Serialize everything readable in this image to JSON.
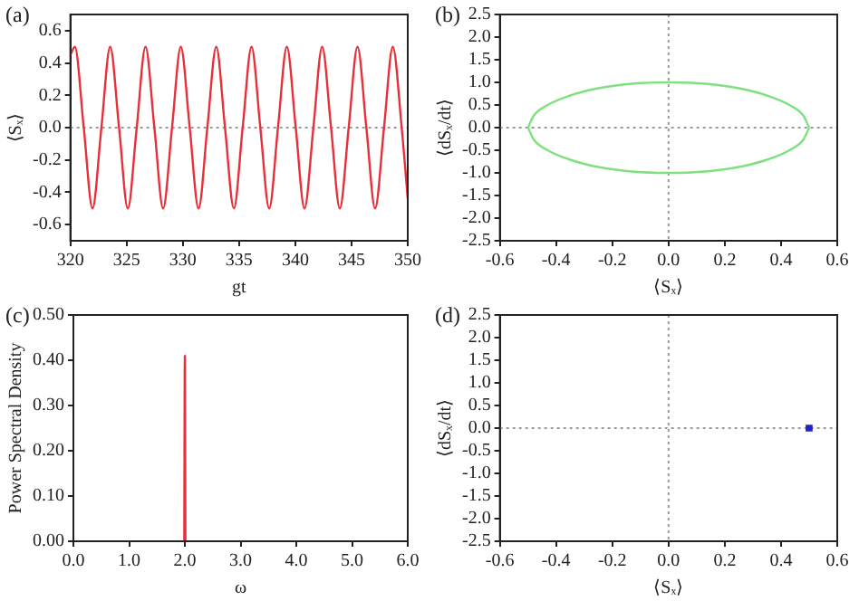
{
  "chart_data": [
    {
      "type": "line",
      "title": "(a)",
      "xlabel": "gt",
      "ylabel": "⟨Sₓ⟩",
      "xlim": [
        320,
        350
      ],
      "ylim": [
        -0.7,
        0.7
      ],
      "xticks": [
        320,
        325,
        330,
        335,
        340,
        345,
        350
      ],
      "yticks": [
        {
          "value": -0.6,
          "label": "-0.6"
        },
        {
          "value": -0.4,
          "label": "-0.4"
        },
        {
          "value": -0.2,
          "label": "-0.2"
        },
        {
          "value": 0,
          "label": "0.0"
        },
        0.2,
        0.4,
        0.6
      ],
      "marker": "none",
      "ref_lines": [
        {
          "axis": "y",
          "value": 0,
          "color": "#999999",
          "line_style": "dotted"
        }
      ],
      "series": [
        {
          "color": "#e8303a",
          "x": [
            320,
            320.4,
            321.19,
            321.97,
            322.76,
            323.54,
            324.33,
            325.11,
            325.9,
            326.68,
            327.47,
            328.25,
            329.04,
            329.82,
            330.61,
            331.4,
            332.18,
            332.97,
            333.75,
            334.54,
            335.32,
            336.11,
            336.89,
            337.68,
            338.46,
            339.25,
            340.04,
            340.82,
            341.61,
            342.39,
            343.18,
            343.96,
            344.75,
            345.53,
            346.32,
            347.1,
            347.89,
            348.67,
            349.46,
            350
          ],
          "values": [
            0.45,
            0.5,
            0,
            -0.5,
            0,
            0.5,
            0,
            -0.5,
            0,
            0.5,
            0,
            -0.5,
            0,
            0.5,
            0,
            -0.5,
            0,
            0.5,
            0,
            -0.5,
            0,
            0.5,
            0,
            -0.5,
            0,
            0.5,
            0,
            -0.5,
            0,
            0.5,
            0,
            -0.5,
            0,
            0.5,
            0,
            -0.5,
            0,
            0.5,
            0,
            -0.44
          ]
        }
      ]
    },
    {
      "type": "line",
      "title": "(b)",
      "xlabel": "⟨Sₓ⟩",
      "ylabel": "⟨dSₓ/dt⟩",
      "xlim": [
        -0.6,
        0.6
      ],
      "ylim": [
        -2.5,
        2.5
      ],
      "xticks": [
        -0.6,
        -0.4,
        -0.2,
        {
          "value": 0,
          "label": "0.0"
        },
        0.2,
        0.4,
        0.6
      ],
      "yticks": [
        -2.5,
        {
          "value": -2,
          "label": "-2.0"
        },
        -1.5,
        {
          "value": -1,
          "label": "-1.0"
        },
        -0.5,
        {
          "value": 0,
          "label": "0.0"
        },
        0.5,
        {
          "value": 1,
          "label": "1.0"
        },
        1.5,
        {
          "value": 2,
          "label": "2.0"
        },
        2.5
      ],
      "marker": "none",
      "ref_lines": [
        {
          "axis": "x",
          "value": 0,
          "color": "#999999",
          "line_style": "dotted"
        },
        {
          "axis": "y",
          "value": 0,
          "color": "#999999",
          "line_style": "dotted"
        }
      ],
      "series": [
        {
          "color": "#7fe07f",
          "x": [
            -0.5,
            -0.48,
            -0.43,
            -0.35,
            -0.25,
            -0.13,
            0,
            0.13,
            0.25,
            0.35,
            0.43,
            0.48,
            0.5
          ],
          "values": [
            0,
            0.26,
            0.5,
            0.71,
            0.87,
            0.97,
            1,
            0.97,
            0.87,
            0.71,
            0.5,
            0.26,
            0
          ]
        },
        {
          "color": "#7fe07f",
          "x": [
            -0.5,
            -0.48,
            -0.43,
            -0.35,
            -0.25,
            -0.13,
            0,
            0.13,
            0.25,
            0.35,
            0.43,
            0.48,
            0.5
          ],
          "values": [
            0,
            -0.26,
            -0.5,
            -0.71,
            -0.87,
            -0.97,
            -1,
            -0.97,
            -0.87,
            -0.71,
            -0.5,
            -0.26,
            0
          ]
        }
      ]
    },
    {
      "type": "line",
      "title": "(c)",
      "xlabel": "ω",
      "ylabel": "Power Spectral Density",
      "xlim": [
        0,
        6
      ],
      "ylim": [
        0,
        0.5
      ],
      "xticks": [
        {
          "value": 0,
          "label": "0.0"
        },
        {
          "value": 1,
          "label": "1.0"
        },
        {
          "value": 2,
          "label": "2.0"
        },
        {
          "value": 3,
          "label": "3.0"
        },
        {
          "value": 4,
          "label": "4.0"
        },
        {
          "value": 5,
          "label": "5.0"
        },
        {
          "value": 6,
          "label": "6.0"
        }
      ],
      "yticks": [
        {
          "value": 0,
          "label": "0.00"
        },
        {
          "value": 0.1,
          "label": "0.10"
        },
        {
          "value": 0.2,
          "label": "0.20"
        },
        {
          "value": 0.3,
          "label": "0.30"
        },
        {
          "value": 0.4,
          "label": "0.40"
        },
        {
          "value": 0.5,
          "label": "0.50"
        }
      ],
      "marker": "none",
      "series": [
        {
          "color": "#e8303a",
          "x": [
            1.99,
            2,
            2.01
          ],
          "values": [
            0,
            0.41,
            0
          ]
        }
      ]
    },
    {
      "type": "scatter",
      "title": "(d)",
      "xlabel": "⟨Sₓ⟩",
      "ylabel": "⟨dSₓ/dt⟩",
      "xlim": [
        -0.6,
        0.6
      ],
      "ylim": [
        -2.5,
        2.5
      ],
      "xticks": [
        -0.6,
        -0.4,
        -0.2,
        {
          "value": 0,
          "label": "0.0"
        },
        0.2,
        0.4,
        0.6
      ],
      "yticks": [
        -2.5,
        {
          "value": -2,
          "label": "-2.0"
        },
        -1.5,
        {
          "value": -1,
          "label": "-1.0"
        },
        -0.5,
        {
          "value": 0,
          "label": "0.0"
        },
        0.5,
        {
          "value": 1,
          "label": "1.0"
        },
        1.5,
        {
          "value": 2,
          "label": "2.0"
        },
        2.5
      ],
      "marker": "square",
      "ref_lines": [
        {
          "axis": "x",
          "value": 0,
          "color": "#999999",
          "line_style": "dotted"
        },
        {
          "axis": "y",
          "value": 0,
          "color": "#999999",
          "line_style": "dotted"
        }
      ],
      "series": [
        {
          "color": "#2222cc",
          "x": [
            0.5
          ],
          "values": [
            0
          ]
        }
      ]
    }
  ]
}
